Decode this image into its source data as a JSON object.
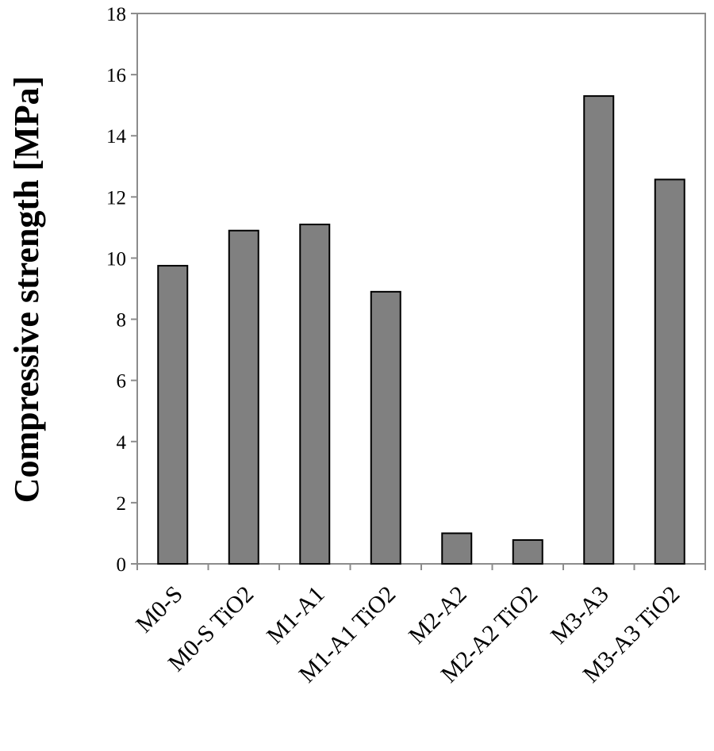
{
  "chart_data": {
    "type": "bar",
    "title": "",
    "xlabel": "",
    "ylabel": "Compressive  strength [MPa]",
    "ylim": [
      0,
      18
    ],
    "yticks": [
      0,
      2,
      4,
      6,
      8,
      10,
      12,
      14,
      16,
      18
    ],
    "ytick_labels": [
      "0",
      "2",
      "4",
      "6",
      "8",
      "10",
      "12",
      "14",
      "16",
      "18"
    ],
    "categories": [
      "M0-S",
      "M0-S TiO2",
      "M1-A1",
      "M1-A1 TiO2",
      "M2-A2",
      "M2-A2 TiO2",
      "M3-A3",
      "M3-A3 TiO2"
    ],
    "values": [
      9.75,
      10.9,
      11.1,
      8.9,
      1.0,
      0.78,
      15.3,
      12.57
    ],
    "grid": false,
    "legend": "none",
    "colors": {
      "bar_fill": "#808080",
      "bar_stroke": "#000000",
      "frame": "#8c8c8c",
      "text": "#000000"
    }
  }
}
